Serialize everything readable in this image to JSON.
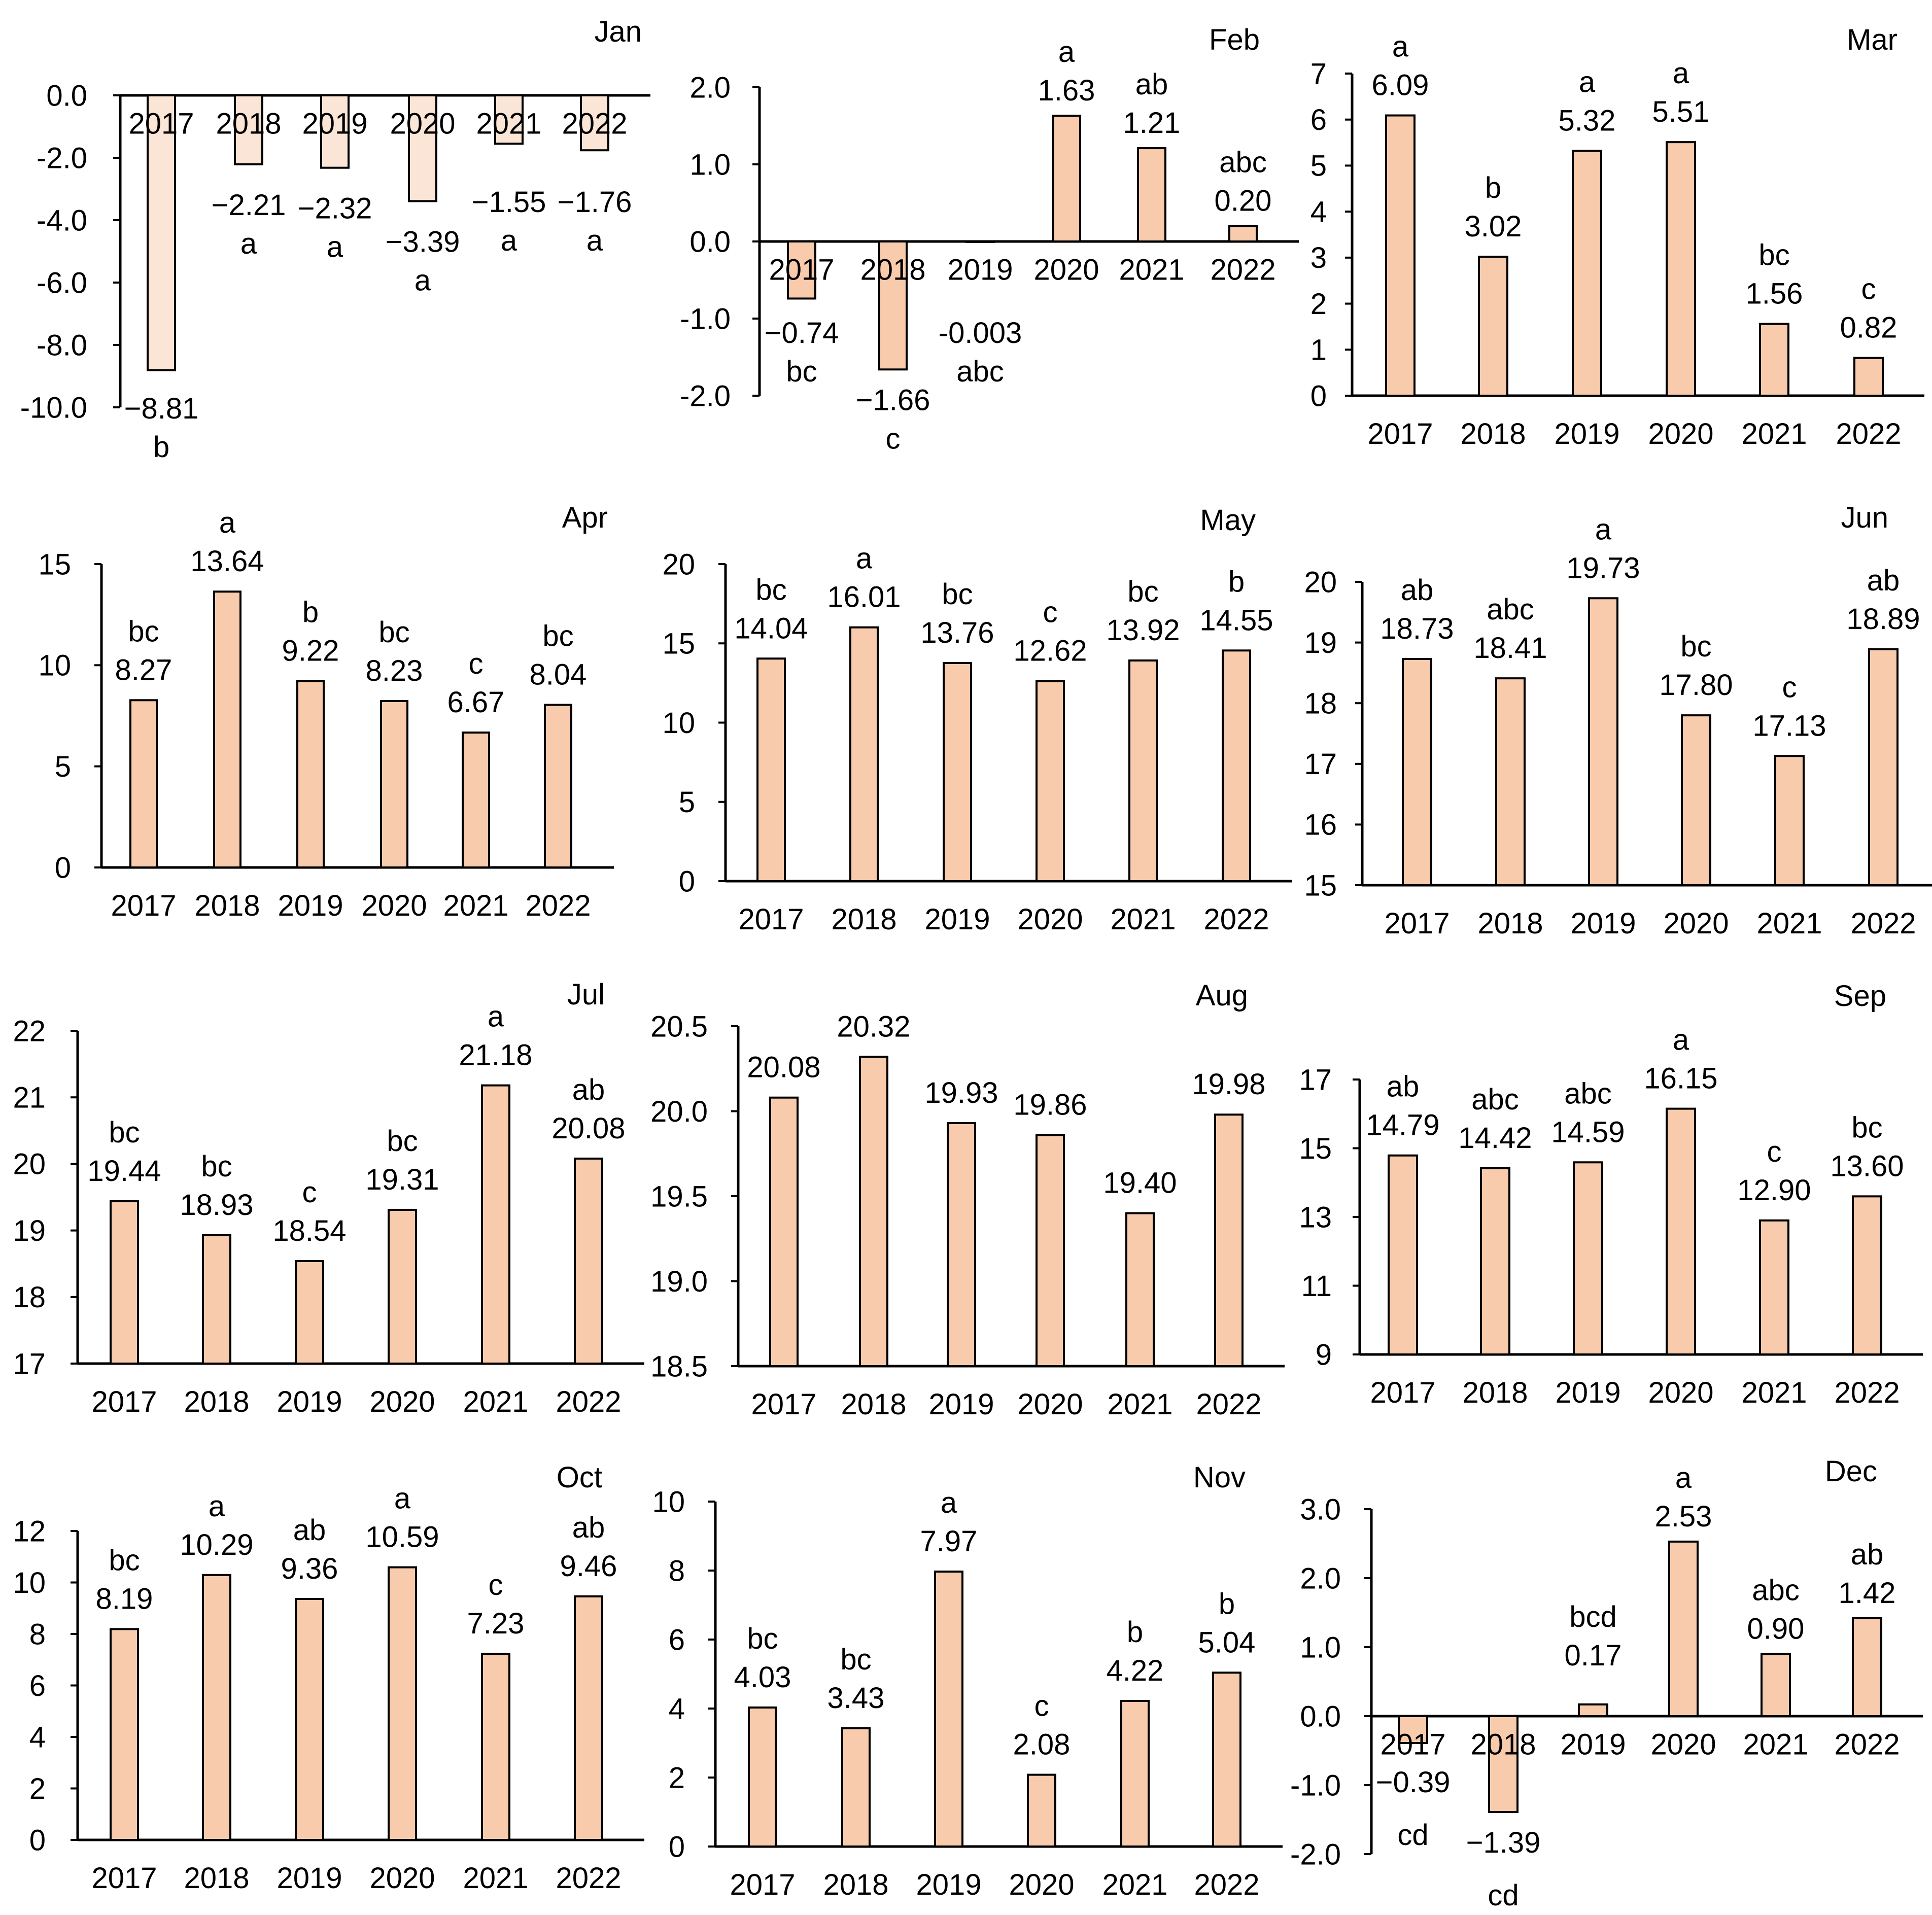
{
  "colors": {
    "bar_fill": "#f8cbad",
    "bar_fill_light": "#fbe5d6",
    "bar_stroke": "#000000",
    "axis": "#000000"
  },
  "chart_data": [
    {
      "id": "jan",
      "type": "bar",
      "title": "Jan",
      "xlabel": "",
      "ylabel": "",
      "grid": false,
      "legend": "none",
      "categories": [
        "2017",
        "2018",
        "2019",
        "2020",
        "2021",
        "2022"
      ],
      "values": [
        -8.81,
        -2.21,
        -2.32,
        -3.39,
        -1.55,
        -1.76
      ],
      "value_labels": [
        "−8.81",
        "−2.21",
        "−2.32",
        "−3.39",
        "−1.55",
        "−1.76"
      ],
      "letters": [
        "b",
        "a",
        "a",
        "a",
        "a",
        "a"
      ],
      "ylim": [
        -10,
        0
      ],
      "yticks": [
        0,
        -2,
        -4,
        -6,
        -8,
        -10
      ],
      "ytick_labels": [
        "0.0",
        "-2.0",
        "-4.0",
        "-6.0",
        "-8.0",
        "-10.0"
      ]
    },
    {
      "id": "feb",
      "type": "bar",
      "title": "Feb",
      "xlabel": "",
      "ylabel": "",
      "grid": false,
      "legend": "none",
      "categories": [
        "2017",
        "2018",
        "2019",
        "2020",
        "2021",
        "2022"
      ],
      "values": [
        -0.74,
        -1.66,
        -0.003,
        1.63,
        1.21,
        0.2
      ],
      "value_labels": [
        "−0.74",
        "−1.66",
        "-0.003",
        "1.63",
        "1.21",
        "0.20"
      ],
      "letters": [
        "bc",
        "c",
        "abc",
        "a",
        "ab",
        "abc"
      ],
      "ylim": [
        -2,
        2
      ],
      "yticks": [
        2,
        1,
        0,
        -1,
        -2
      ],
      "ytick_labels": [
        "2.0",
        "1.0",
        "0.0",
        "-1.0",
        "-2.0"
      ]
    },
    {
      "id": "mar",
      "type": "bar",
      "title": "Mar",
      "xlabel": "",
      "ylabel": "",
      "grid": false,
      "legend": "none",
      "categories": [
        "2017",
        "2018",
        "2019",
        "2020",
        "2021",
        "2022"
      ],
      "values": [
        6.09,
        3.02,
        5.32,
        5.51,
        1.56,
        0.82
      ],
      "value_labels": [
        "6.09",
        "3.02",
        "5.32",
        "5.51",
        "1.56",
        "0.82"
      ],
      "letters": [
        "a",
        "b",
        "a",
        "a",
        "bc",
        "c"
      ],
      "ylim": [
        0,
        7
      ],
      "yticks": [
        7,
        6,
        5,
        4,
        3,
        2,
        1,
        0
      ],
      "ytick_labels": [
        "7",
        "6",
        "5",
        "4",
        "3",
        "2",
        "1",
        "0"
      ]
    },
    {
      "id": "apr",
      "type": "bar",
      "title": "Apr",
      "xlabel": "",
      "ylabel": "",
      "grid": false,
      "legend": "none",
      "categories": [
        "2017",
        "2018",
        "2019",
        "2020",
        "2021",
        "2022"
      ],
      "values": [
        8.27,
        13.64,
        9.22,
        8.23,
        6.67,
        8.04
      ],
      "value_labels": [
        "8.27",
        "13.64",
        "9.22",
        "8.23",
        "6.67",
        "8.04"
      ],
      "letters": [
        "bc",
        "a",
        "b",
        "bc",
        "c",
        "bc"
      ],
      "ylim": [
        0,
        15
      ],
      "yticks": [
        15,
        10,
        5,
        0
      ],
      "ytick_labels": [
        "15",
        "10",
        "5",
        "0"
      ]
    },
    {
      "id": "may",
      "type": "bar",
      "title": "May",
      "xlabel": "",
      "ylabel": "",
      "grid": false,
      "legend": "none",
      "categories": [
        "2017",
        "2018",
        "2019",
        "2020",
        "2021",
        "2022"
      ],
      "values": [
        14.04,
        16.01,
        13.76,
        12.62,
        13.92,
        14.55
      ],
      "value_labels": [
        "14.04",
        "16.01",
        "13.76",
        "12.62",
        "13.92",
        "14.55"
      ],
      "letters": [
        "bc",
        "a",
        "bc",
        "c",
        "bc",
        "b"
      ],
      "ylim": [
        0,
        20
      ],
      "yticks": [
        20,
        15,
        10,
        5,
        0
      ],
      "ytick_labels": [
        "20",
        "15",
        "10",
        "5",
        "0"
      ]
    },
    {
      "id": "jun",
      "type": "bar",
      "title": "Jun",
      "xlabel": "",
      "ylabel": "",
      "grid": false,
      "legend": "none",
      "categories": [
        "2017",
        "2018",
        "2019",
        "2020",
        "2021",
        "2022"
      ],
      "values": [
        18.73,
        18.41,
        19.73,
        17.8,
        17.13,
        18.89
      ],
      "value_labels": [
        "18.73",
        "18.41",
        "19.73",
        "17.80",
        "17.13",
        "18.89"
      ],
      "letters": [
        "ab",
        "abc",
        "a",
        "bc",
        "c",
        "ab"
      ],
      "ylim": [
        15,
        20
      ],
      "yticks": [
        20,
        19,
        18,
        17,
        16,
        15
      ],
      "ytick_labels": [
        "20",
        "19",
        "18",
        "17",
        "16",
        "15"
      ]
    },
    {
      "id": "jul",
      "type": "bar",
      "title": "Jul",
      "xlabel": "",
      "ylabel": "",
      "grid": false,
      "legend": "none",
      "categories": [
        "2017",
        "2018",
        "2019",
        "2020",
        "2021",
        "2022"
      ],
      "values": [
        19.44,
        18.93,
        18.54,
        19.31,
        21.18,
        20.08
      ],
      "value_labels": [
        "19.44",
        "18.93",
        "18.54",
        "19.31",
        "21.18",
        "20.08"
      ],
      "letters": [
        "bc",
        "bc",
        "c",
        "bc",
        "a",
        "ab"
      ],
      "ylim": [
        17,
        22
      ],
      "yticks": [
        22,
        21,
        20,
        19,
        18,
        17
      ],
      "ytick_labels": [
        "22",
        "21",
        "20",
        "19",
        "18",
        "17"
      ]
    },
    {
      "id": "aug",
      "type": "bar",
      "title": "Aug",
      "xlabel": "",
      "ylabel": "",
      "grid": false,
      "legend": "none",
      "categories": [
        "2017",
        "2018",
        "2019",
        "2020",
        "2021",
        "2022"
      ],
      "values": [
        20.08,
        20.32,
        19.93,
        19.86,
        19.4,
        19.98
      ],
      "value_labels": [
        "20.08",
        "20.32",
        "19.93",
        "19.86",
        "19.40",
        "19.98"
      ],
      "letters": [
        "",
        "",
        "",
        "",
        "",
        ""
      ],
      "ylim": [
        18.5,
        20.5
      ],
      "yticks": [
        20.5,
        20,
        19.5,
        19,
        18.5
      ],
      "ytick_labels": [
        "20.5",
        "20.0",
        "19.5",
        "19.0",
        "18.5"
      ]
    },
    {
      "id": "sep",
      "type": "bar",
      "title": "Sep",
      "xlabel": "",
      "ylabel": "",
      "grid": false,
      "legend": "none",
      "categories": [
        "2017",
        "2018",
        "2019",
        "2020",
        "2021",
        "2022"
      ],
      "values": [
        14.79,
        14.42,
        14.59,
        16.15,
        12.9,
        13.6
      ],
      "value_labels": [
        "14.79",
        "14.42",
        "14.59",
        "16.15",
        "12.90",
        "13.60"
      ],
      "letters": [
        "ab",
        "abc",
        "abc",
        "a",
        "c",
        "bc"
      ],
      "ylim": [
        9,
        17
      ],
      "yticks": [
        17,
        15,
        13,
        11,
        9
      ],
      "ytick_labels": [
        "17",
        "15",
        "13",
        "11",
        "9"
      ]
    },
    {
      "id": "oct",
      "type": "bar",
      "title": "Oct",
      "xlabel": "",
      "ylabel": "",
      "grid": false,
      "legend": "none",
      "categories": [
        "2017",
        "2018",
        "2019",
        "2020",
        "2021",
        "2022"
      ],
      "values": [
        8.19,
        10.29,
        9.36,
        10.59,
        7.23,
        9.46
      ],
      "value_labels": [
        "8.19",
        "10.29",
        "9.36",
        "10.59",
        "7.23",
        "9.46"
      ],
      "letters": [
        "bc",
        "a",
        "ab",
        "a",
        "c",
        "ab"
      ],
      "ylim": [
        0,
        12
      ],
      "yticks": [
        12,
        10,
        8,
        6,
        4,
        2,
        0
      ],
      "ytick_labels": [
        "12",
        "10",
        "8",
        "6",
        "4",
        "2",
        "0"
      ]
    },
    {
      "id": "nov",
      "type": "bar",
      "title": "Nov",
      "xlabel": "",
      "ylabel": "",
      "grid": false,
      "legend": "none",
      "categories": [
        "2017",
        "2018",
        "2019",
        "2020",
        "2021",
        "2022"
      ],
      "values": [
        4.03,
        3.43,
        7.97,
        2.08,
        4.22,
        5.04
      ],
      "value_labels": [
        "4.03",
        "3.43",
        "7.97",
        "2.08",
        "4.22",
        "5.04"
      ],
      "letters": [
        "bc",
        "bc",
        "a",
        "c",
        "b",
        "b"
      ],
      "ylim": [
        0,
        10
      ],
      "yticks": [
        10,
        8,
        6,
        4,
        2,
        0
      ],
      "ytick_labels": [
        "10",
        "8",
        "6",
        "4",
        "2",
        "0"
      ]
    },
    {
      "id": "dec",
      "type": "bar",
      "title": "Dec",
      "xlabel": "",
      "ylabel": "",
      "grid": false,
      "legend": "none",
      "categories": [
        "2017",
        "2018",
        "2019",
        "2020",
        "2021",
        "2022"
      ],
      "values": [
        -0.39,
        -1.39,
        0.17,
        2.53,
        0.9,
        1.42
      ],
      "value_labels": [
        "−0.39",
        "−1.39",
        "0.17",
        "2.53",
        "0.90",
        "1.42"
      ],
      "letters": [
        "cd",
        "cd",
        "bcd",
        "a",
        "abc",
        "ab"
      ],
      "ylim": [
        -2,
        3
      ],
      "yticks": [
        3,
        2,
        1,
        0,
        -1,
        -2
      ],
      "ytick_labels": [
        "3.0",
        "2.0",
        "1.0",
        "0.0",
        "-1.0",
        "-2.0"
      ]
    }
  ]
}
